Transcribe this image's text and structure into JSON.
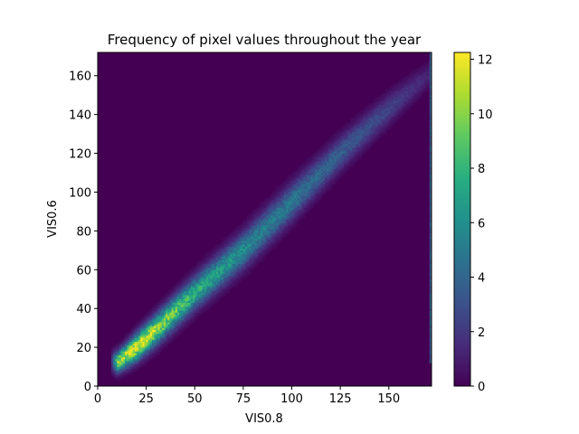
{
  "chart_data": {
    "type": "heatmap",
    "title": "Frequency of pixel values throughout the year",
    "xlabel": "VIS0.8",
    "ylabel": "VIS0.6",
    "xlim": [
      0,
      172
    ],
    "ylim": [
      0,
      172
    ],
    "x_ticks": [
      0,
      25,
      50,
      75,
      100,
      125,
      150
    ],
    "y_ticks": [
      0,
      20,
      40,
      60,
      80,
      100,
      120,
      140,
      160
    ],
    "colormap": "viridis",
    "colorbar": {
      "min": 0,
      "max": 12.25,
      "ticks": [
        0,
        2,
        4,
        6,
        8,
        10,
        12
      ]
    },
    "background_value": 0,
    "ridge": {
      "description": "dense diagonal band",
      "points": [
        {
          "x": 10,
          "y": 12,
          "peak": 10.5,
          "width": 3.5
        },
        {
          "x": 20,
          "y": 20,
          "peak": 12.2,
          "width": 4.5
        },
        {
          "x": 30,
          "y": 29,
          "peak": 10.5,
          "width": 5.0
        },
        {
          "x": 50,
          "y": 48,
          "peak": 7.5,
          "width": 5.5
        },
        {
          "x": 75,
          "y": 70,
          "peak": 5.8,
          "width": 6.0
        },
        {
          "x": 100,
          "y": 95,
          "peak": 4.8,
          "width": 6.0
        },
        {
          "x": 125,
          "y": 120,
          "peak": 3.6,
          "width": 5.5
        },
        {
          "x": 150,
          "y": 143,
          "peak": 2.4,
          "width": 5.0
        },
        {
          "x": 170,
          "y": 160,
          "peak": 1.2,
          "width": 4.0
        }
      ]
    },
    "saturation_column": {
      "x": 171,
      "y_range": [
        12,
        172
      ],
      "value": 4.5
    },
    "grid": false,
    "legend": "none"
  }
}
